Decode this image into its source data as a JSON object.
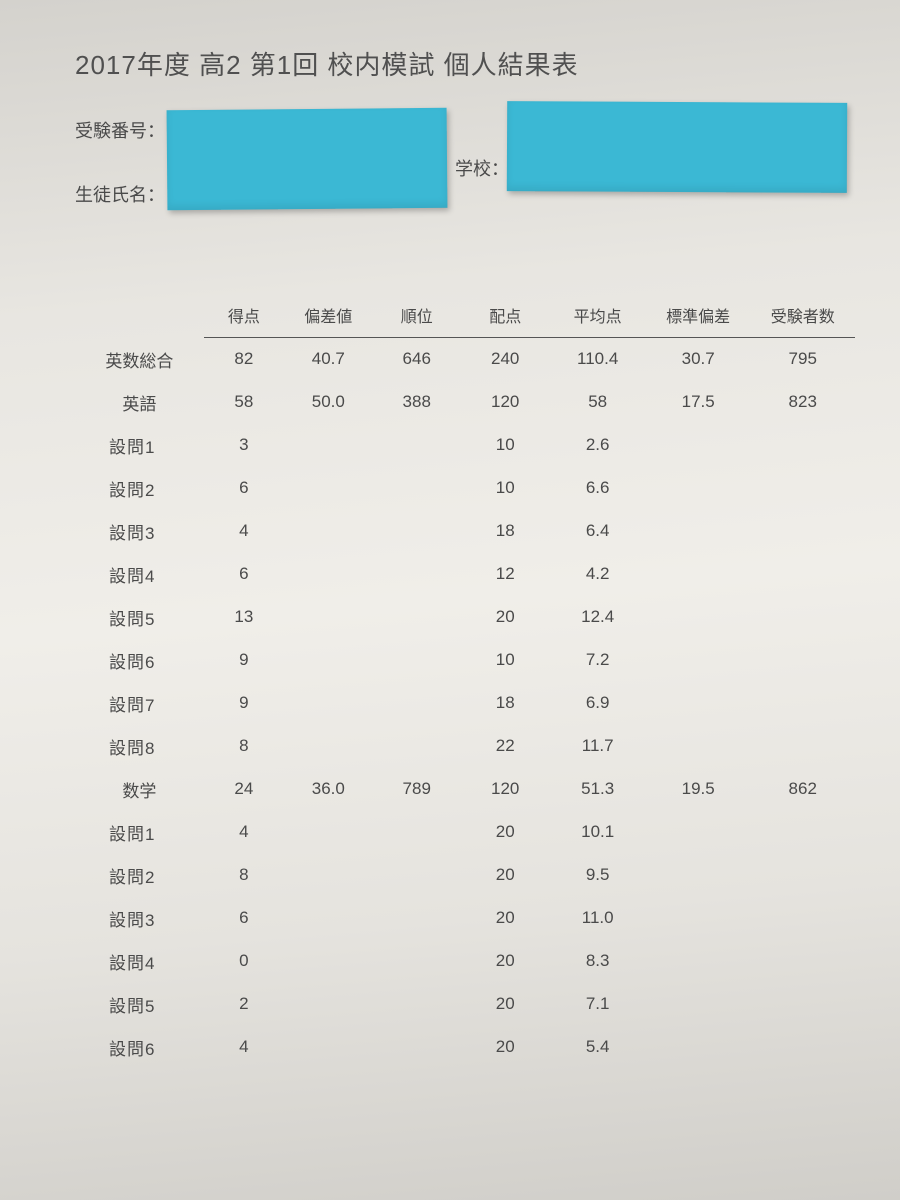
{
  "title": "2017年度 高2 第1回 校内模試 個人結果表",
  "labels": {
    "exam_number": "受験番号：",
    "student_name": "生徒氏名：",
    "school": "学校："
  },
  "sticky_color": "#3bb8d4",
  "columns": [
    "",
    "得点",
    "偏差値",
    "順位",
    "配点",
    "平均点",
    "標準偏差",
    "受験者数"
  ],
  "rows": [
    {
      "type": "subject",
      "label": "英数総合",
      "score": "82",
      "dev": "40.7",
      "rank": "646",
      "full": "240",
      "avg": "110.4",
      "std": "30.7",
      "count": "795"
    },
    {
      "type": "subject",
      "label": "英語",
      "score": "58",
      "dev": "50.0",
      "rank": "388",
      "full": "120",
      "avg": "58",
      "std": "17.5",
      "count": "823"
    },
    {
      "type": "sub",
      "label": "設問1",
      "score": "3",
      "full": "10",
      "avg": "2.6"
    },
    {
      "type": "sub",
      "label": "設問2",
      "score": "6",
      "full": "10",
      "avg": "6.6"
    },
    {
      "type": "sub",
      "label": "設問3",
      "score": "4",
      "full": "18",
      "avg": "6.4"
    },
    {
      "type": "sub",
      "label": "設問4",
      "score": "6",
      "full": "12",
      "avg": "4.2"
    },
    {
      "type": "sub",
      "label": "設問5",
      "score": "13",
      "full": "20",
      "avg": "12.4"
    },
    {
      "type": "sub",
      "label": "設問6",
      "score": "9",
      "full": "10",
      "avg": "7.2"
    },
    {
      "type": "sub",
      "label": "設問7",
      "score": "9",
      "full": "18",
      "avg": "6.9"
    },
    {
      "type": "sub",
      "label": "設問8",
      "score": "8",
      "full": "22",
      "avg": "11.7"
    },
    {
      "type": "subject",
      "label": "数学",
      "score": "24",
      "dev": "36.0",
      "rank": "789",
      "full": "120",
      "avg": "51.3",
      "std": "19.5",
      "count": "862"
    },
    {
      "type": "sub",
      "label": "設問1",
      "score": "4",
      "full": "20",
      "avg": "10.1"
    },
    {
      "type": "sub",
      "label": "設問2",
      "score": "8",
      "full": "20",
      "avg": "9.5"
    },
    {
      "type": "sub",
      "label": "設問3",
      "score": "6",
      "full": "20",
      "avg": "11.0"
    },
    {
      "type": "sub",
      "label": "設問4",
      "score": "0",
      "full": "20",
      "avg": "8.3"
    },
    {
      "type": "sub",
      "label": "設問5",
      "score": "2",
      "full": "20",
      "avg": "7.1"
    },
    {
      "type": "sub",
      "label": "設問6",
      "score": "4",
      "full": "20",
      "avg": "5.4"
    }
  ]
}
